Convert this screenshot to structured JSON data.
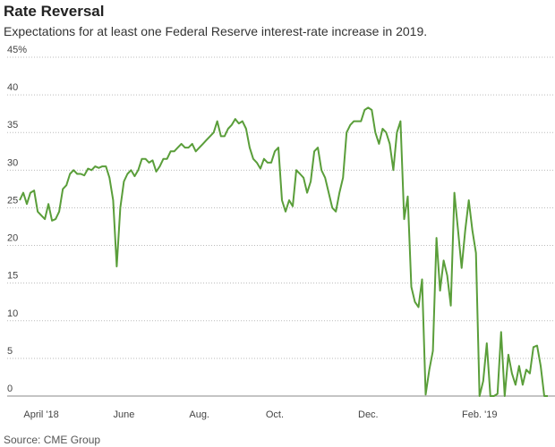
{
  "chart_data": {
    "type": "line",
    "title": "Rate Reversal",
    "subtitle": "Expectations for at least one Federal Reserve interest-rate increase in 2019.",
    "source": "Source: CME Group",
    "color": "#5a9e3a",
    "grid": true,
    "ylim": [
      0,
      45
    ],
    "yticks": [
      0,
      5,
      10,
      15,
      20,
      25,
      30,
      35,
      40,
      {
        "value": 45,
        "label": "45%"
      }
    ],
    "categories": [
      null,
      null,
      null,
      null,
      null,
      null,
      "April '18",
      null,
      null,
      null,
      null,
      null,
      null,
      null,
      null,
      null,
      null,
      null,
      null,
      null,
      null,
      null,
      null,
      null,
      null,
      null,
      null,
      null,
      null,
      "June",
      null,
      null,
      null,
      null,
      null,
      null,
      null,
      null,
      null,
      null,
      null,
      null,
      null,
      null,
      null,
      null,
      null,
      null,
      null,
      null,
      "Aug.",
      null,
      null,
      null,
      null,
      null,
      null,
      null,
      null,
      null,
      null,
      null,
      null,
      null,
      null,
      null,
      null,
      null,
      null,
      null,
      null,
      "Oct.",
      null,
      null,
      null,
      null,
      null,
      null,
      null,
      null,
      null,
      null,
      null,
      null,
      null,
      null,
      null,
      null,
      null,
      null,
      null,
      null,
      null,
      null,
      null,
      null,
      null,
      "Dec.",
      null,
      null,
      null,
      null,
      null,
      null,
      null,
      null,
      null,
      null,
      null,
      null,
      null,
      null,
      null,
      null,
      null,
      null,
      null,
      null,
      null,
      null,
      null,
      null,
      null,
      null,
      null,
      null,
      null,
      null,
      "Feb. '19",
      null,
      null,
      null,
      null,
      null,
      null,
      null,
      null,
      null,
      null,
      null,
      null,
      null,
      null,
      null,
      null,
      null,
      null,
      null
    ],
    "values": [
      26,
      27,
      25.5,
      27,
      27.3,
      24.5,
      24,
      23.5,
      25.5,
      23.3,
      23.5,
      24.5,
      27.5,
      28,
      29.5,
      30,
      29.5,
      29.5,
      29.3,
      30.2,
      30,
      30.5,
      30.3,
      30.5,
      30.5,
      29,
      26,
      17.2,
      25,
      28.5,
      29.5,
      30,
      29.2,
      30,
      31.5,
      31.5,
      31,
      31.3,
      29.8,
      30.5,
      31.5,
      31.5,
      32.5,
      32.5,
      33,
      33.5,
      33,
      33,
      33.5,
      32.5,
      33,
      33.5,
      34,
      34.5,
      35,
      36.5,
      34.5,
      34.5,
      35.5,
      36,
      36.8,
      36.2,
      36.5,
      35.5,
      33,
      31.5,
      31,
      30.2,
      31.5,
      31,
      31,
      32.5,
      33,
      26,
      24.5,
      26,
      25.2,
      30,
      29.5,
      29,
      27,
      28.5,
      32.5,
      33,
      30,
      29,
      27,
      25,
      24.5,
      27,
      29,
      35,
      36,
      36.5,
      36.5,
      36.5,
      38,
      38.3,
      38,
      35,
      33.5,
      35.5,
      35,
      33.5,
      30,
      35,
      36.5,
      23.5,
      26.5,
      14.5,
      12.5,
      11.8,
      15.5,
      0.2,
      3.5,
      6,
      21,
      14,
      18,
      16,
      12,
      27,
      22,
      17,
      22,
      26,
      22,
      19,
      0,
      2,
      7,
      0,
      0,
      0.3,
      8.5,
      0,
      5.5,
      3,
      1.5,
      4,
      1.5,
      3.5,
      3,
      6.5,
      6.7,
      4,
      0,
      0
    ]
  }
}
